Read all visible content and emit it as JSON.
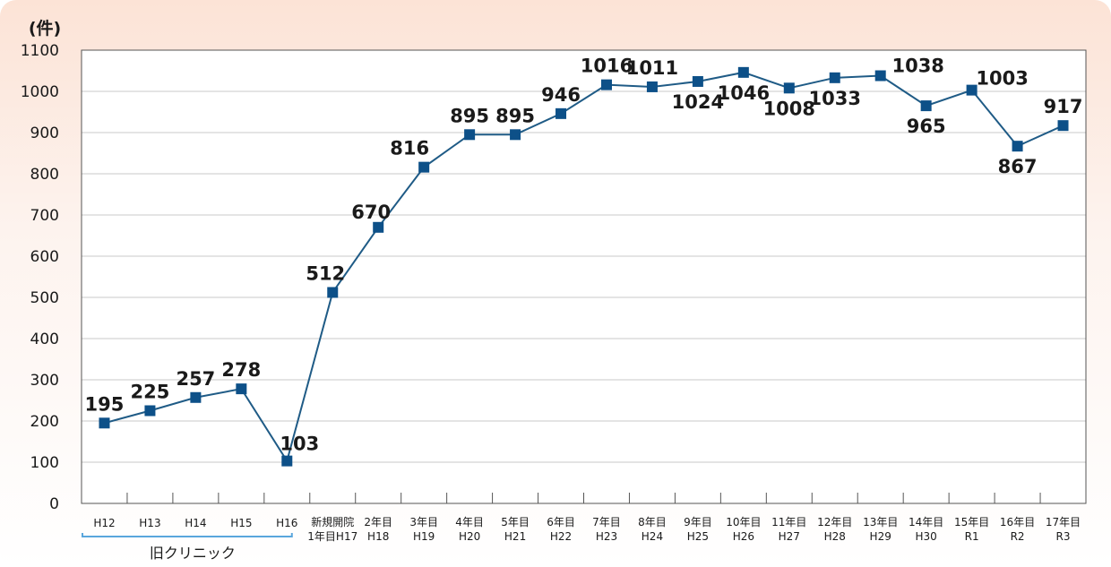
{
  "chart_data": {
    "type": "line",
    "unit_label": "(件)",
    "ylim": [
      0,
      1100
    ],
    "y_ticks": [
      "0",
      "100",
      "200",
      "300",
      "400",
      "500",
      "600",
      "700",
      "800",
      "900",
      "1000",
      "1100"
    ],
    "grid": "horizontal",
    "categories": [
      [
        "H12"
      ],
      [
        "H13"
      ],
      [
        "H14"
      ],
      [
        "H15"
      ],
      [
        "H16"
      ],
      [
        "新規開院",
        "1年目H17"
      ],
      [
        "2年目",
        "H18"
      ],
      [
        "3年目",
        "H19"
      ],
      [
        "4年目",
        "H20"
      ],
      [
        "5年目",
        "H21"
      ],
      [
        "6年目",
        "H22"
      ],
      [
        "7年目",
        "H23"
      ],
      [
        "8年目",
        "H24"
      ],
      [
        "9年目",
        "H25"
      ],
      [
        "10年目",
        "H26"
      ],
      [
        "11年目",
        "H27"
      ],
      [
        "12年目",
        "H28"
      ],
      [
        "13年目",
        "H29"
      ],
      [
        "14年目",
        "H30"
      ],
      [
        "15年目",
        "R1"
      ],
      [
        "16年目",
        "R2"
      ],
      [
        "17年目",
        "R3"
      ]
    ],
    "series": [
      {
        "values": [
          195,
          225,
          257,
          278,
          103,
          512,
          670,
          816,
          895,
          895,
          946,
          1016,
          1011,
          1024,
          1046,
          1008,
          1033,
          1038,
          965,
          1003,
          867,
          917
        ],
        "labels": [
          "195",
          "225",
          "257",
          "278",
          "103",
          "512",
          "670",
          "816",
          "895",
          "895",
          "946",
          "1016",
          "1011",
          "1024",
          "1046",
          "1008",
          "1033",
          "1038",
          "965",
          "1003",
          "867",
          "917"
        ],
        "color": "#1f5b86",
        "marker_color": "#0d5088"
      }
    ],
    "annotations": [
      {
        "text": "旧クリニック",
        "span": [
          0,
          4
        ]
      }
    ],
    "axis_color": "#555555",
    "grid_color": "#c8c8c8",
    "bracket_color": "#5aa6dc"
  }
}
